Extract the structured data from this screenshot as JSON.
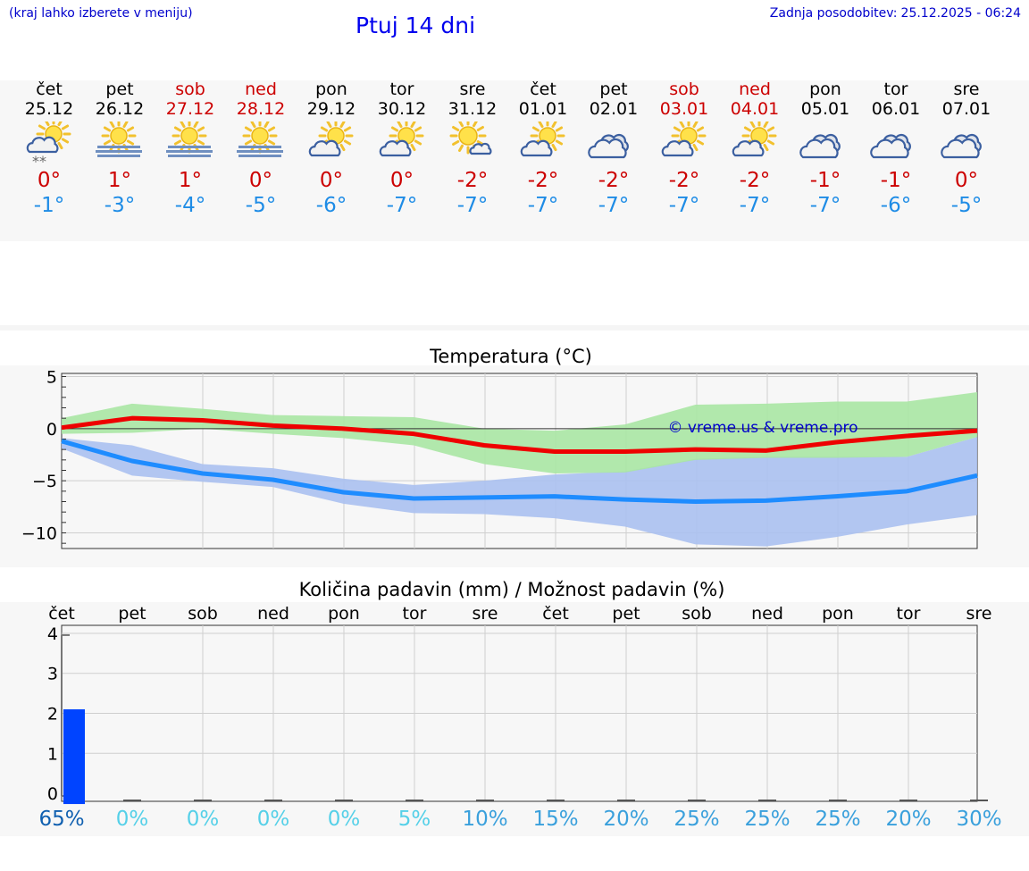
{
  "header": {
    "hint": "(kraj lahko izberete v meniju)",
    "title": "Ptuj 14 dni",
    "updated_label": "Zadnja posodobitev:",
    "updated_value": "25.12.2025 - 06:24"
  },
  "days": [
    {
      "name": "čet",
      "date": "25.12",
      "weekend": false,
      "icon": "partly-cloudy-snow-icon",
      "max": "0°",
      "min": "-1°"
    },
    {
      "name": "pet",
      "date": "26.12",
      "weekend": false,
      "icon": "sun-fog-icon",
      "max": "1°",
      "min": "-3°"
    },
    {
      "name": "sob",
      "date": "27.12",
      "weekend": true,
      "icon": "sun-fog-icon",
      "max": "1°",
      "min": "-4°"
    },
    {
      "name": "ned",
      "date": "28.12",
      "weekend": true,
      "icon": "sun-fog-icon",
      "max": "0°",
      "min": "-5°"
    },
    {
      "name": "pon",
      "date": "29.12",
      "weekend": false,
      "icon": "partly-cloudy-icon",
      "max": "0°",
      "min": "-6°"
    },
    {
      "name": "tor",
      "date": "30.12",
      "weekend": false,
      "icon": "partly-cloudy-icon",
      "max": "0°",
      "min": "-7°"
    },
    {
      "name": "sre",
      "date": "31.12",
      "weekend": false,
      "icon": "mostly-sunny-icon",
      "max": "-2°",
      "min": "-7°"
    },
    {
      "name": "čet",
      "date": "01.01",
      "weekend": false,
      "icon": "partly-cloudy-icon",
      "max": "-2°",
      "min": "-7°"
    },
    {
      "name": "pet",
      "date": "02.01",
      "weekend": false,
      "icon": "cloudy-icon",
      "max": "-2°",
      "min": "-7°"
    },
    {
      "name": "sob",
      "date": "03.01",
      "weekend": true,
      "icon": "partly-cloudy-icon",
      "max": "-2°",
      "min": "-7°"
    },
    {
      "name": "ned",
      "date": "04.01",
      "weekend": true,
      "icon": "partly-cloudy-icon",
      "max": "-2°",
      "min": "-7°"
    },
    {
      "name": "pon",
      "date": "05.01",
      "weekend": false,
      "icon": "cloudy-icon",
      "max": "-1°",
      "min": "-7°"
    },
    {
      "name": "tor",
      "date": "06.01",
      "weekend": false,
      "icon": "cloudy-icon",
      "max": "-1°",
      "min": "-6°"
    },
    {
      "name": "sre",
      "date": "07.01",
      "weekend": false,
      "icon": "cloudy-icon",
      "max": "0°",
      "min": "-5°"
    }
  ],
  "colors": {
    "max_line": "#ee0000",
    "min_line": "#1e8cff",
    "max_band": "#a8e6a3",
    "min_band": "#aac0f0",
    "overlap": "#7cc3a6",
    "weekend": "#cc0000",
    "precip_bar": "#0044ff",
    "pct_strong": "#1060b0",
    "pct_light": "#55d0e8",
    "pct_mid": "#3aa0dc"
  },
  "chart_data": [
    {
      "type": "line",
      "title": "Temperatura (°C)",
      "ylim": [
        -11.5,
        5.3
      ],
      "yticks": [
        "5",
        "0",
        "−5",
        "−10"
      ],
      "ytick_values": [
        5,
        0,
        -5,
        -10
      ],
      "watermark": "© vreme.us & vreme.pro",
      "x": [
        0,
        1,
        2,
        3,
        4,
        5,
        6,
        7,
        8,
        9,
        10,
        11,
        12,
        13
      ],
      "series": [
        {
          "name": "max",
          "values": [
            0.1,
            1.0,
            0.8,
            0.3,
            0.0,
            -0.5,
            -1.6,
            -2.2,
            -2.2,
            -2.0,
            -2.1,
            -1.3,
            -0.7,
            -0.2
          ],
          "band_low": [
            -0.5,
            -0.4,
            0.0,
            -0.5,
            -0.9,
            -1.6,
            -3.4,
            -4.3,
            -4.2,
            -3.0,
            -2.8,
            -2.8,
            -2.7,
            -0.8
          ],
          "band_high": [
            1.0,
            2.4,
            1.9,
            1.3,
            1.2,
            1.1,
            0.0,
            -0.2,
            0.4,
            2.3,
            2.4,
            2.6,
            2.6,
            3.5
          ]
        },
        {
          "name": "min",
          "values": [
            -1.2,
            -3.1,
            -4.3,
            -4.9,
            -6.1,
            -6.7,
            -6.6,
            -6.5,
            -6.8,
            -7.0,
            -6.9,
            -6.5,
            -6.0,
            -4.5
          ],
          "band_low": [
            -1.9,
            -4.5,
            -5.1,
            -5.6,
            -7.2,
            -8.1,
            -8.2,
            -8.6,
            -9.4,
            -11.1,
            -11.3,
            -10.4,
            -9.2,
            -8.3
          ],
          "band_high": [
            -0.9,
            -1.6,
            -3.4,
            -3.8,
            -4.8,
            -5.4,
            -5.0,
            -4.4,
            -4.1,
            -2.9,
            -2.7,
            -2.7,
            -2.7,
            -0.8
          ]
        }
      ]
    },
    {
      "type": "bar",
      "title": "Količina padavin (mm) / Možnost padavin (%)",
      "categories": [
        "čet",
        "pet",
        "sob",
        "ned",
        "pon",
        "tor",
        "sre",
        "čet",
        "pet",
        "sob",
        "ned",
        "pon",
        "tor",
        "sre"
      ],
      "ylim": [
        -0.2,
        4.2
      ],
      "yticks": [
        "4",
        "3",
        "2",
        "1",
        "0"
      ],
      "ytick_values": [
        4,
        3,
        2,
        1,
        0
      ],
      "values": [
        2.1,
        0,
        0,
        0,
        0,
        0,
        0,
        0,
        0,
        0,
        0,
        0,
        0,
        0
      ],
      "probability": [
        "65%",
        "0%",
        "0%",
        "0%",
        "0%",
        "5%",
        "10%",
        "15%",
        "20%",
        "25%",
        "25%",
        "25%",
        "20%",
        "30%"
      ]
    }
  ]
}
